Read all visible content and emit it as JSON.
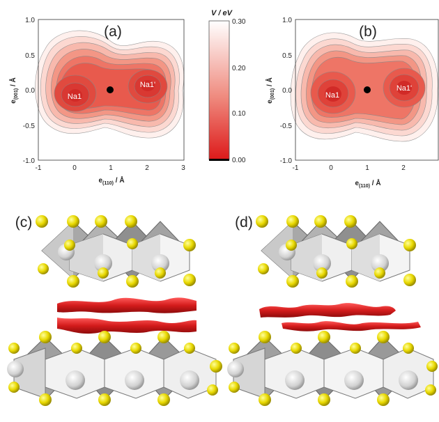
{
  "panels": [
    {
      "label": "(a)",
      "site_left": "Na1",
      "site_right": "Na1'",
      "xlabel_main": "e",
      "xlabel_sub": "(110)",
      "xlabel_unit": " / Å",
      "ylabel_main": "e",
      "ylabel_sub": "(001)",
      "ylabel_unit": " / Å",
      "xticks": [
        "-1",
        "0",
        "1",
        "2",
        "3"
      ],
      "yticks": [
        "1.0",
        "0.5",
        "0.0",
        "-0.5",
        "-1.0"
      ]
    },
    {
      "label": "(b)",
      "site_left": "Na1",
      "site_right": "Na1'",
      "xlabel_main": "e",
      "xlabel_sub": "(110)",
      "xlabel_unit": " / Å",
      "ylabel_main": "e",
      "ylabel_sub": "(001)",
      "ylabel_unit": " / Å",
      "xticks": [
        "-1",
        "0",
        "1",
        "2"
      ],
      "yticks": [
        "1.0",
        "0.5",
        "0.0",
        "-0.5",
        "-1.0"
      ]
    },
    {
      "label": "(c)"
    },
    {
      "label": "(d)"
    }
  ],
  "colorbar": {
    "title": "V / eV",
    "ticks": [
      "0.30",
      "0.20",
      "0.10",
      "0.00"
    ],
    "colors": [
      "#e02020",
      "#ffffff"
    ]
  },
  "colors": {
    "potential_fill": "#e8352e",
    "isosurface": "#d11f22",
    "sulfur": "#f2e600",
    "octahedron": "#8a8a8a",
    "ion": "#d7d7d7"
  }
}
